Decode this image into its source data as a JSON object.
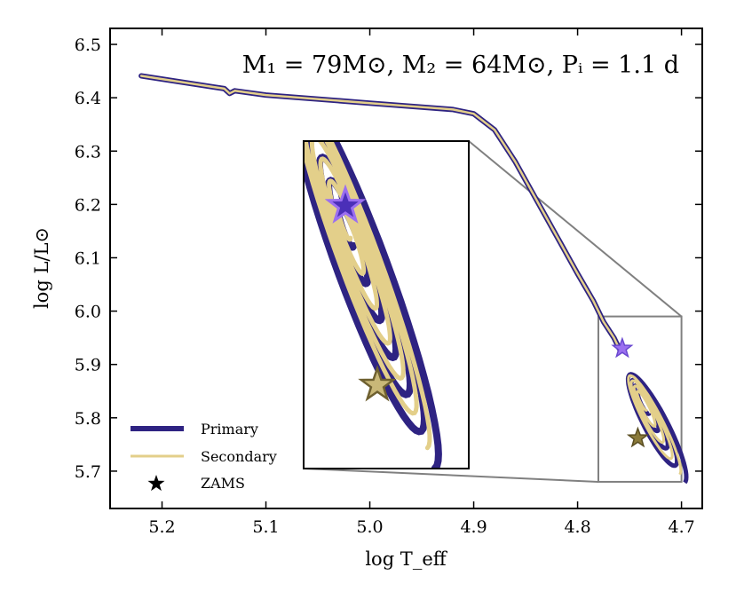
{
  "chart_data": {
    "type": "line",
    "title": "M₁ = 79M⊙, M₂ = 64M⊙,  Pᵢ = 1.1 d",
    "xlabel": "log T_eff",
    "ylabel": "log L/L⊙",
    "xlim": [
      5.25,
      4.68
    ],
    "ylim": [
      5.63,
      6.53
    ],
    "x_ticks": [
      {
        "value": 5.2,
        "label": "5.2"
      },
      {
        "value": 5.1,
        "label": "5.1"
      },
      {
        "value": 5.0,
        "label": "5.0"
      },
      {
        "value": 4.9,
        "label": "4.9"
      },
      {
        "value": 4.8,
        "label": "4.8"
      },
      {
        "value": 4.7,
        "label": "4.7"
      }
    ],
    "y_ticks": [
      {
        "value": 5.7,
        "label": "5.7"
      },
      {
        "value": 5.8,
        "label": "5.8"
      },
      {
        "value": 5.9,
        "label": "5.9"
      },
      {
        "value": 6.0,
        "label": "6.0"
      },
      {
        "value": 6.1,
        "label": "6.1"
      },
      {
        "value": 6.2,
        "label": "6.2"
      },
      {
        "value": 6.3,
        "label": "6.3"
      },
      {
        "value": 6.4,
        "label": "6.4"
      },
      {
        "value": 6.5,
        "label": "6.5"
      }
    ],
    "colors": {
      "primary": "#2e2382",
      "secondary": "#e3cf8a",
      "primary_star": "#9b6ff0",
      "secondary_star": "#8a7a3a",
      "zoom_box": "#808080"
    },
    "legend": {
      "position": "lower-left",
      "entries": [
        {
          "label": "Primary",
          "marker": "line"
        },
        {
          "label": "Secondary",
          "marker": "line"
        },
        {
          "label": "ZAMS",
          "marker": "star"
        }
      ]
    },
    "series": [
      {
        "name": "Primary",
        "x": [
          5.22,
          5.15,
          5.14,
          5.135,
          5.13,
          5.1,
          5.0,
          4.92,
          4.9,
          4.88,
          4.86,
          4.84,
          4.82,
          4.8,
          4.785,
          4.775,
          4.765,
          4.76
        ],
        "y": [
          6.441,
          6.42,
          6.417,
          6.408,
          6.413,
          6.405,
          6.39,
          6.378,
          6.37,
          6.34,
          6.28,
          6.21,
          6.14,
          6.07,
          6.02,
          5.98,
          5.95,
          5.93
        ]
      },
      {
        "name": "Secondary",
        "x": [
          5.22,
          5.15,
          5.14,
          5.135,
          5.13,
          5.1,
          5.0,
          4.92,
          4.9,
          4.88,
          4.86,
          4.84,
          4.82,
          4.8,
          4.785,
          4.775,
          4.765,
          4.76
        ],
        "y": [
          6.441,
          6.42,
          6.417,
          6.408,
          6.413,
          6.405,
          6.39,
          6.378,
          6.37,
          6.34,
          6.28,
          6.21,
          6.14,
          6.07,
          6.02,
          5.98,
          5.95,
          5.93
        ]
      }
    ],
    "zams": [
      {
        "series": "Primary",
        "x": 4.757,
        "y": 5.93
      },
      {
        "series": "Secondary",
        "x": 4.742,
        "y": 5.762
      }
    ],
    "zoom_region": {
      "xlim": [
        4.78,
        4.7
      ],
      "ylim": [
        5.68,
        5.99
      ]
    }
  }
}
